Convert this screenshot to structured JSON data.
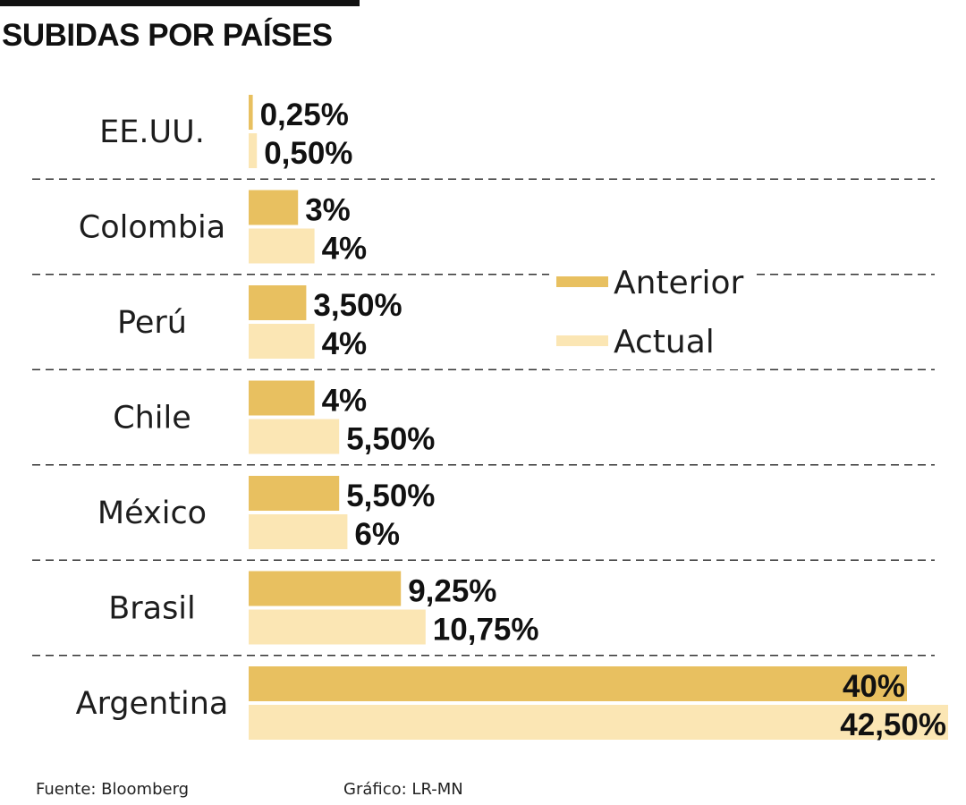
{
  "title": "SUBIDAS POR PAÍSES",
  "footer": {
    "source": "Fuente:  Bloomberg",
    "credit": "Gráfico: LR-MN"
  },
  "colors": {
    "anterior": "#E8C060",
    "actual": "#FBE6B4",
    "divider": "#333333",
    "text": "#111111"
  },
  "chart_data": {
    "type": "bar",
    "orientation": "horizontal",
    "title": "SUBIDAS POR PAÍSES",
    "categories": [
      "EE.UU.",
      "Colombia",
      "Perú",
      "Chile",
      "México",
      "Brasil",
      "Argentina"
    ],
    "series": [
      {
        "name": "Anterior",
        "values": [
          0.25,
          3,
          3.5,
          4,
          5.5,
          9.25,
          40
        ],
        "labels": [
          "0,25%",
          "3%",
          "3,50%",
          "4%",
          "5,50%",
          "9,25%",
          "40%"
        ]
      },
      {
        "name": "Actual",
        "values": [
          0.5,
          4,
          4,
          5.5,
          6,
          10.75,
          42.5
        ],
        "labels": [
          "0,50%",
          "4%",
          "4%",
          "5,50%",
          "6%",
          "10,75%",
          "42,50%"
        ]
      }
    ],
    "legend": [
      "Anterior",
      "Actual"
    ],
    "legend_position": "center-right",
    "xlim": [
      0,
      42.5
    ],
    "xlabel": "",
    "ylabel": "",
    "grid": false
  }
}
